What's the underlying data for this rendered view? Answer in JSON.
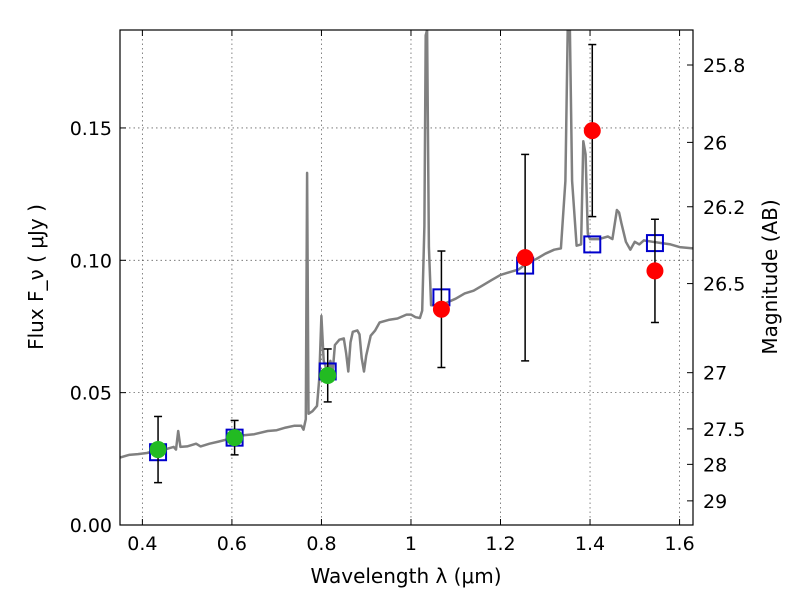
{
  "chart_data": {
    "type": "scatter",
    "title": "",
    "xlabel": "Wavelength  λ (μm)",
    "ylabel": "Flux  F_ν  ( μJy )",
    "ylabel_right": "Magnitude (AB)",
    "xlim": [
      0.35,
      1.63
    ],
    "ylim": [
      0.0,
      0.187
    ],
    "x_ticks": [
      {
        "value": 0.4,
        "label": "0.4"
      },
      {
        "value": 0.6,
        "label": "0.6"
      },
      {
        "value": 0.8,
        "label": "0.8"
      },
      {
        "value": 1.0,
        "label": "1"
      },
      {
        "value": 1.2,
        "label": "1.2"
      },
      {
        "value": 1.4,
        "label": "1.4"
      },
      {
        "value": 1.6,
        "label": "1.6"
      }
    ],
    "y_ticks": [
      {
        "value": 0.0,
        "label": "0.00"
      },
      {
        "value": 0.05,
        "label": "0.05"
      },
      {
        "value": 0.1,
        "label": "0.10"
      },
      {
        "value": 0.15,
        "label": "0.15"
      }
    ],
    "magnitude_ticks": [
      {
        "mag": 25.8,
        "label": "25.8"
      },
      {
        "mag": 26.0,
        "label": "26"
      },
      {
        "mag": 26.2,
        "label": "26.2"
      },
      {
        "mag": 26.5,
        "label": "26.5"
      },
      {
        "mag": 27.0,
        "label": "27"
      },
      {
        "mag": 27.5,
        "label": "27.5"
      },
      {
        "mag": 28.0,
        "label": "28"
      },
      {
        "mag": 29.0,
        "label": "29"
      }
    ],
    "grid": true,
    "series": [
      {
        "kind": "model-spectrum",
        "color": "#808080",
        "points": [
          [
            0.35,
            0.0255
          ],
          [
            0.37,
            0.0265
          ],
          [
            0.39,
            0.0268
          ],
          [
            0.41,
            0.0272
          ],
          [
            0.42,
            0.0276
          ],
          [
            0.43,
            0.028
          ],
          [
            0.44,
            0.0295
          ],
          [
            0.45,
            0.0285
          ],
          [
            0.46,
            0.029
          ],
          [
            0.47,
            0.0295
          ],
          [
            0.475,
            0.0285
          ],
          [
            0.48,
            0.0355
          ],
          [
            0.485,
            0.0295
          ],
          [
            0.5,
            0.0297
          ],
          [
            0.52,
            0.0307
          ],
          [
            0.53,
            0.0297
          ],
          [
            0.55,
            0.0307
          ],
          [
            0.57,
            0.0315
          ],
          [
            0.6,
            0.0328
          ],
          [
            0.62,
            0.0338
          ],
          [
            0.65,
            0.0343
          ],
          [
            0.68,
            0.0355
          ],
          [
            0.7,
            0.0358
          ],
          [
            0.72,
            0.0368
          ],
          [
            0.74,
            0.0375
          ],
          [
            0.755,
            0.0375
          ],
          [
            0.76,
            0.036
          ],
          [
            0.765,
            0.04
          ],
          [
            0.768,
            0.133
          ],
          [
            0.771,
            0.042
          ],
          [
            0.78,
            0.043
          ],
          [
            0.79,
            0.045
          ],
          [
            0.795,
            0.055
          ],
          [
            0.8,
            0.079
          ],
          [
            0.805,
            0.062
          ],
          [
            0.81,
            0.0595
          ],
          [
            0.815,
            0.058
          ],
          [
            0.82,
            0.062
          ],
          [
            0.825,
            0.0575
          ],
          [
            0.83,
            0.068
          ],
          [
            0.84,
            0.07
          ],
          [
            0.85,
            0.0705
          ],
          [
            0.855,
            0.065
          ],
          [
            0.86,
            0.058
          ],
          [
            0.865,
            0.069
          ],
          [
            0.87,
            0.073
          ],
          [
            0.88,
            0.0735
          ],
          [
            0.885,
            0.072
          ],
          [
            0.89,
            0.063
          ],
          [
            0.895,
            0.058
          ],
          [
            0.9,
            0.064
          ],
          [
            0.91,
            0.0715
          ],
          [
            0.92,
            0.0735
          ],
          [
            0.93,
            0.0765
          ],
          [
            0.95,
            0.0775
          ],
          [
            0.97,
            0.078
          ],
          [
            0.99,
            0.0795
          ],
          [
            1.0,
            0.0795
          ],
          [
            1.01,
            0.0785
          ],
          [
            1.02,
            0.0782
          ],
          [
            1.025,
            0.081
          ],
          [
            1.03,
            0.113
          ],
          [
            1.033,
            0.185
          ],
          [
            1.036,
            0.187
          ],
          [
            1.04,
            0.105
          ],
          [
            1.045,
            0.083
          ],
          [
            1.05,
            0.083
          ],
          [
            1.06,
            0.0825
          ],
          [
            1.08,
            0.084
          ],
          [
            1.1,
            0.0855
          ],
          [
            1.12,
            0.0875
          ],
          [
            1.14,
            0.0885
          ],
          [
            1.16,
            0.0905
          ],
          [
            1.18,
            0.0925
          ],
          [
            1.2,
            0.0945
          ],
          [
            1.22,
            0.0955
          ],
          [
            1.24,
            0.0965
          ],
          [
            1.26,
            0.099
          ],
          [
            1.28,
            0.1005
          ],
          [
            1.3,
            0.1025
          ],
          [
            1.32,
            0.104
          ],
          [
            1.335,
            0.1045
          ],
          [
            1.345,
            0.13
          ],
          [
            1.35,
            0.187
          ],
          [
            1.355,
            0.187
          ],
          [
            1.36,
            0.13
          ],
          [
            1.37,
            0.1055
          ],
          [
            1.38,
            0.106
          ],
          [
            1.385,
            0.145
          ],
          [
            1.39,
            0.14
          ],
          [
            1.395,
            0.11
          ],
          [
            1.4,
            0.108
          ],
          [
            1.42,
            0.108
          ],
          [
            1.44,
            0.109
          ],
          [
            1.45,
            0.108
          ],
          [
            1.46,
            0.119
          ],
          [
            1.465,
            0.118
          ],
          [
            1.47,
            0.114
          ],
          [
            1.48,
            0.107
          ],
          [
            1.49,
            0.104
          ],
          [
            1.5,
            0.107
          ],
          [
            1.51,
            0.106
          ],
          [
            1.52,
            0.1075
          ],
          [
            1.54,
            0.107
          ],
          [
            1.56,
            0.1065
          ],
          [
            1.58,
            0.106
          ],
          [
            1.6,
            0.105
          ],
          [
            1.63,
            0.1045
          ]
        ]
      },
      {
        "kind": "model-photometry",
        "marker": "open-square",
        "color": "#0000cc",
        "points": [
          {
            "x": 0.435,
            "y": 0.0275
          },
          {
            "x": 0.606,
            "y": 0.033
          },
          {
            "x": 0.814,
            "y": 0.058
          },
          {
            "x": 1.068,
            "y": 0.086
          },
          {
            "x": 1.255,
            "y": 0.098
          },
          {
            "x": 1.405,
            "y": 0.106
          },
          {
            "x": 1.545,
            "y": 0.1065
          }
        ]
      },
      {
        "kind": "observed",
        "marker": "filled-circle",
        "color": "#22bb22",
        "points": [
          {
            "x": 0.435,
            "y": 0.0285,
            "err": 0.0125
          },
          {
            "x": 0.606,
            "y": 0.033,
            "err": 0.0065
          },
          {
            "x": 0.814,
            "y": 0.0565,
            "err": 0.01
          }
        ]
      },
      {
        "kind": "observed",
        "marker": "filled-circle",
        "color": "#ff0000",
        "points": [
          {
            "x": 1.068,
            "y": 0.0815,
            "err": 0.022
          },
          {
            "x": 1.255,
            "y": 0.101,
            "err": 0.039
          },
          {
            "x": 1.405,
            "y": 0.149,
            "err": 0.0325
          },
          {
            "x": 1.545,
            "y": 0.096,
            "err": 0.0195
          }
        ]
      }
    ]
  }
}
